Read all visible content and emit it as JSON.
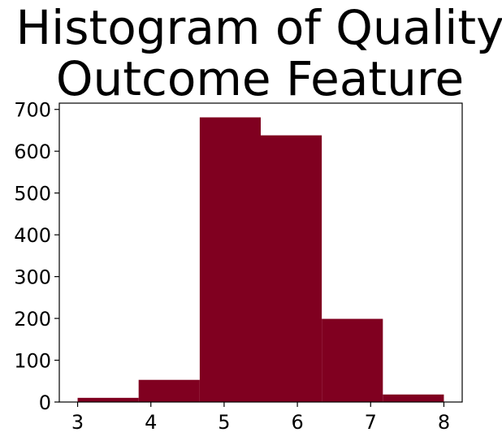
{
  "chart_data": {
    "type": "bar",
    "subtype": "histogram",
    "title": "Histogram of Quality Outcome Feature",
    "title_lines": [
      "Histogram of Quality",
      "Outcome Feature"
    ],
    "xlabel": "",
    "ylabel": "",
    "bins": [
      {
        "start": 3.0,
        "end": 3.833,
        "count": 10
      },
      {
        "start": 3.833,
        "end": 4.667,
        "count": 53
      },
      {
        "start": 4.667,
        "end": 5.5,
        "count": 681
      },
      {
        "start": 5.5,
        "end": 6.333,
        "count": 638
      },
      {
        "start": 6.333,
        "end": 7.167,
        "count": 199
      },
      {
        "start": 7.167,
        "end": 8.0,
        "count": 18
      }
    ],
    "xlim": [
      2.75,
      8.25
    ],
    "ylim": [
      0,
      715
    ],
    "xticks": [
      3,
      4,
      5,
      6,
      7,
      8
    ],
    "yticks": [
      0,
      100,
      200,
      300,
      400,
      500,
      600,
      700
    ],
    "grid": false,
    "legend": "none",
    "colors": {
      "bar": "#800020",
      "axis": "#000000",
      "background": "#ffffff"
    }
  }
}
